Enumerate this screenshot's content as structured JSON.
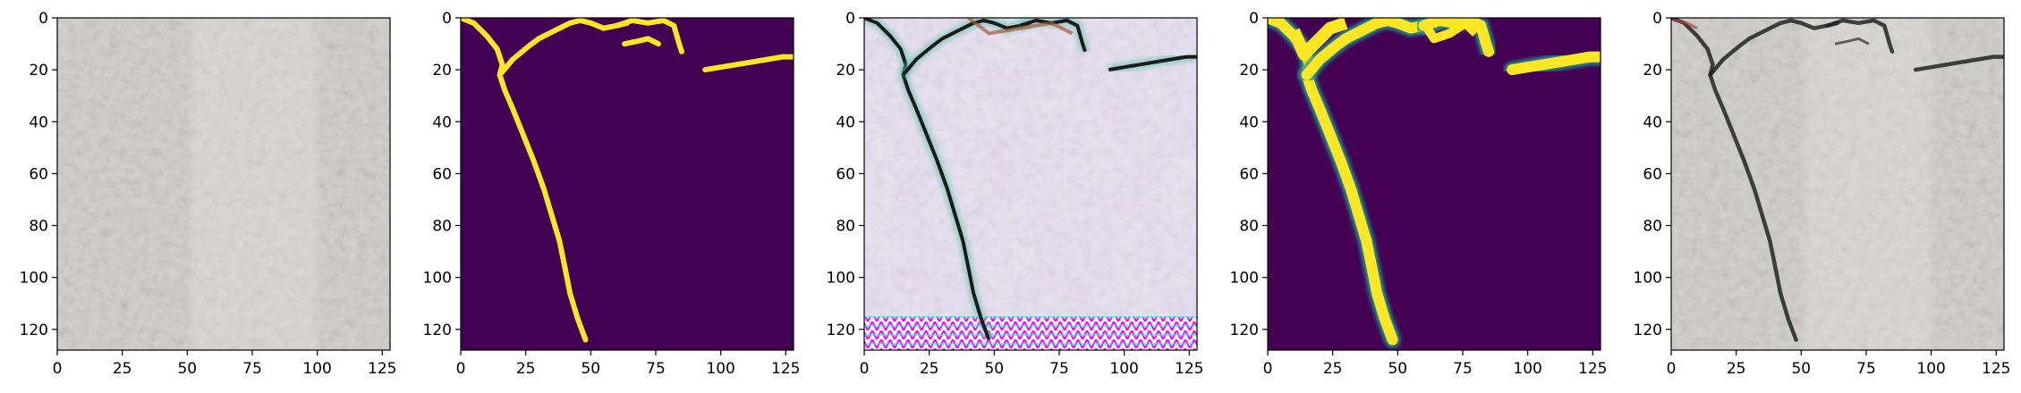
{
  "panels": [
    {
      "id": "input-image",
      "kind": "photo",
      "description_icon": "concrete-texture-icon"
    },
    {
      "id": "ground-truth",
      "kind": "mask",
      "description_icon": "crack-mask-icon"
    },
    {
      "id": "generated-image",
      "kind": "synthetic",
      "description_icon": "gan-output-icon"
    },
    {
      "id": "predicted-mask",
      "kind": "mask-soft",
      "description_icon": "crack-mask-icon"
    },
    {
      "id": "composited-image",
      "kind": "photo-crack",
      "description_icon": "concrete-crack-icon"
    }
  ],
  "axes": {
    "x_ticks": [
      "0",
      "25",
      "50",
      "75",
      "100",
      "125"
    ],
    "y_ticks": [
      "0",
      "20",
      "40",
      "60",
      "80",
      "100",
      "120"
    ],
    "x_tick_values": [
      0,
      25,
      50,
      75,
      100,
      125
    ],
    "y_tick_values": [
      0,
      20,
      40,
      60,
      80,
      100,
      120
    ],
    "xlim": [
      0,
      128
    ],
    "ylim": [
      128,
      0
    ]
  },
  "colors": {
    "mask_background": "#440154",
    "mask_foreground": "#fde725",
    "mask_mid": "#21918c",
    "concrete": "#cfcdc8",
    "axis": "#000000"
  }
}
